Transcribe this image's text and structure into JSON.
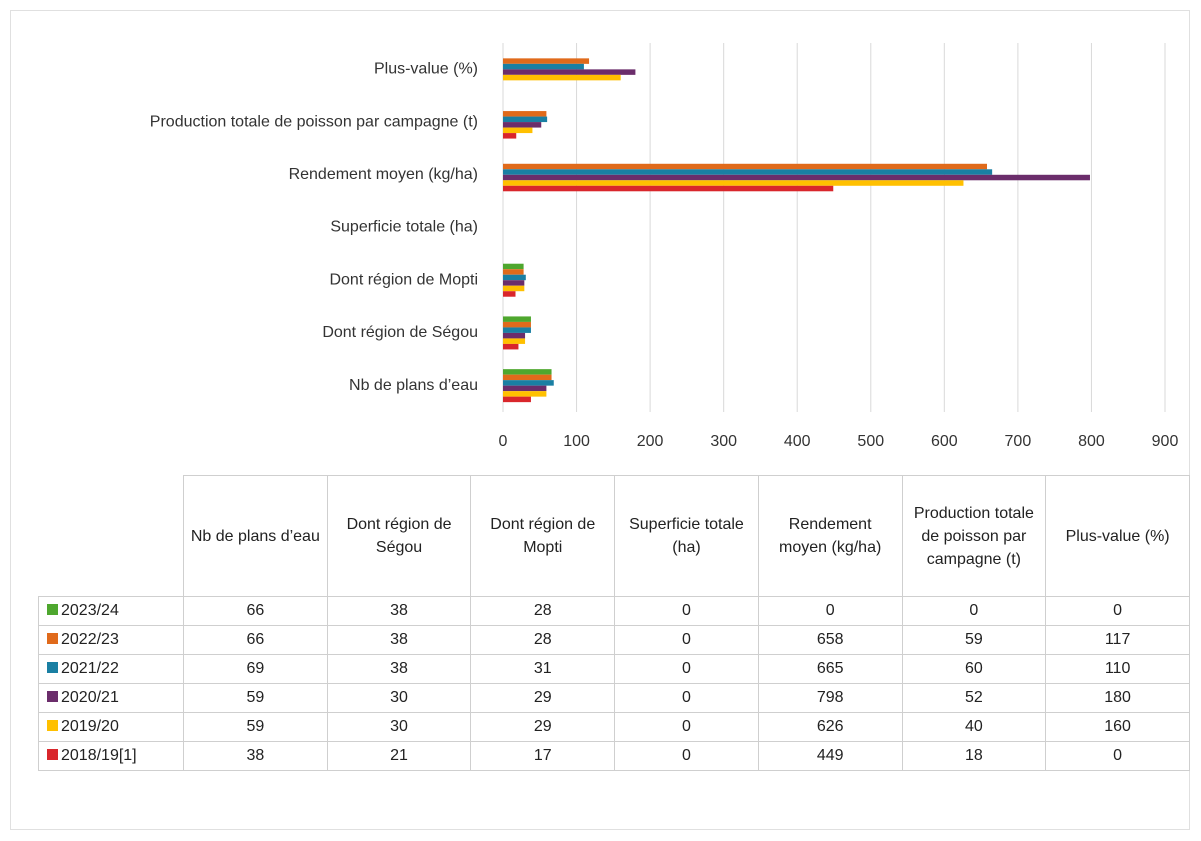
{
  "chart_data": {
    "type": "hbar",
    "categories": [
      "Nb de plans d’eau",
      "Dont région de Ségou",
      "Dont région de Mopti",
      "Superficie totale (ha)",
      "Rendement moyen (kg/ha)",
      "Production totale de poisson par campagne (t)",
      "Plus-value (%)"
    ],
    "series": [
      {
        "name": "2023/24",
        "color": "#4ea72e",
        "values": [
          66,
          38,
          28,
          0,
          0,
          0,
          0
        ]
      },
      {
        "name": "2022/23",
        "color": "#e06a1b",
        "values": [
          66,
          38,
          28,
          0,
          658,
          59,
          117
        ]
      },
      {
        "name": "2021/22",
        "color": "#1a7fa3",
        "values": [
          69,
          38,
          31,
          0,
          665,
          60,
          110
        ]
      },
      {
        "name": "2020/21",
        "color": "#6b2d6b",
        "values": [
          59,
          30,
          29,
          0,
          798,
          52,
          180
        ]
      },
      {
        "name": "2019/20",
        "color": "#ffc000",
        "values": [
          59,
          30,
          29,
          0,
          626,
          40,
          160
        ]
      },
      {
        "name": "2018/19[1]",
        "color": "#d9262b",
        "values": [
          38,
          21,
          17,
          0,
          449,
          18,
          0
        ]
      }
    ],
    "xlim": [
      0,
      900
    ],
    "xticks": [
      0,
      100,
      200,
      300,
      400,
      500,
      600,
      700,
      800,
      900
    ],
    "grid": true
  }
}
